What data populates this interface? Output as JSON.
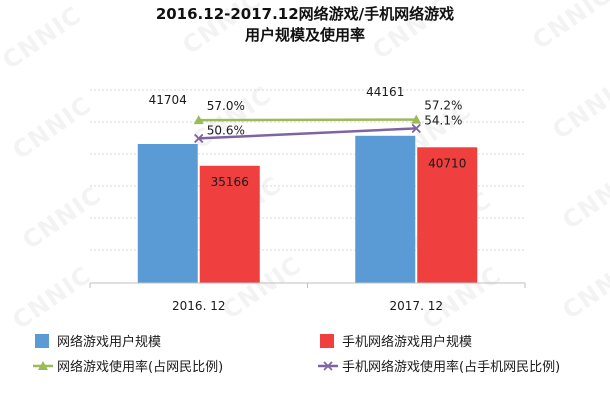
{
  "chart_data": {
    "type": "bar",
    "title_line1": "2016.12-2017.12网络游戏/手机网络游戏",
    "title_line2": "用户规模及使用率",
    "categories": [
      "2016. 12",
      "2017. 12"
    ],
    "series": [
      {
        "name": "网络游戏用户规模",
        "type": "bar",
        "color": "#5b9bd5",
        "values": [
          41704,
          44161
        ]
      },
      {
        "name": "手机网络游戏用户规模",
        "type": "bar",
        "color": "#ef3f3f",
        "values": [
          35166,
          40710
        ]
      },
      {
        "name": "网络游戏使用率(占网民比例)",
        "type": "line",
        "color": "#9bbb59",
        "marker": "triangle",
        "values": [
          57.0,
          57.2
        ],
        "labels": [
          "57.0%",
          "57.2%"
        ]
      },
      {
        "name": "手机网络游戏使用率(占手机网民比例)",
        "type": "line",
        "color": "#8064a2",
        "marker": "x",
        "values": [
          50.6,
          54.1
        ],
        "labels": [
          "50.6%",
          "54.1%"
        ]
      }
    ],
    "bar_ylim": [
      0,
      60000
    ],
    "line_ylim": [
      0,
      70
    ],
    "grid": true,
    "legend": "bottom",
    "watermark": "CNNIC"
  }
}
